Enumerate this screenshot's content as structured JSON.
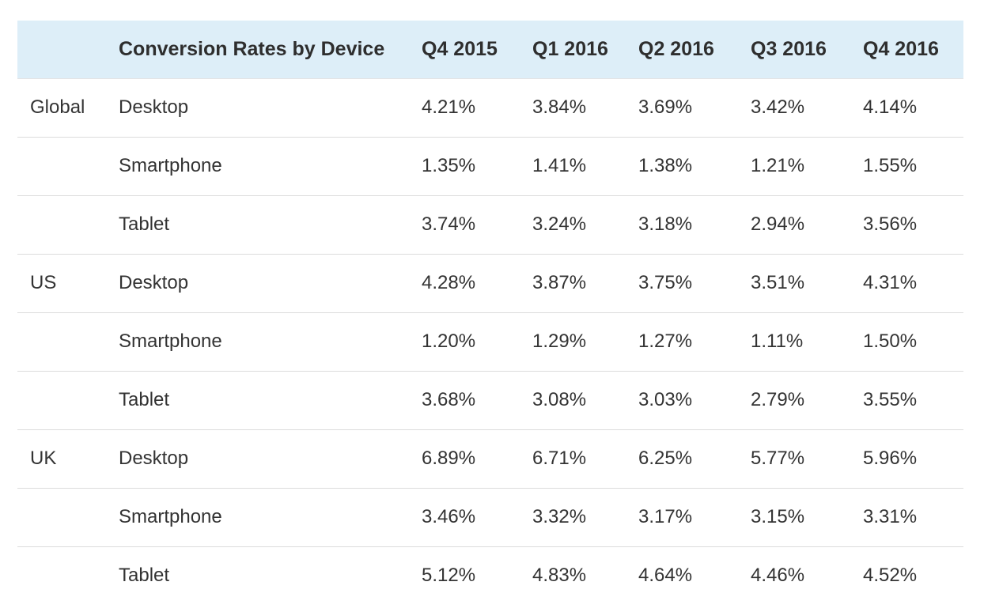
{
  "chart_data": {
    "type": "table",
    "title": "Conversion Rates by Device",
    "columns": [
      "",
      "Conversion Rates by Device",
      "Q4 2015",
      "Q1 2016",
      "Q2 2016",
      "Q3 2016",
      "Q4 2016"
    ],
    "rows": [
      {
        "region": "Global",
        "device": "Desktop",
        "values": [
          "4.21%",
          "3.84%",
          "3.69%",
          "3.42%",
          "4.14%"
        ]
      },
      {
        "region": "",
        "device": "Smartphone",
        "values": [
          "1.35%",
          "1.41%",
          "1.38%",
          "1.21%",
          "1.55%"
        ]
      },
      {
        "region": "",
        "device": "Tablet",
        "values": [
          "3.74%",
          "3.24%",
          "3.18%",
          "2.94%",
          "3.56%"
        ]
      },
      {
        "region": "US",
        "device": "Desktop",
        "values": [
          "4.28%",
          "3.87%",
          "3.75%",
          "3.51%",
          "4.31%"
        ]
      },
      {
        "region": "",
        "device": "Smartphone",
        "values": [
          "1.20%",
          "1.29%",
          "1.27%",
          "1.11%",
          "1.50%"
        ]
      },
      {
        "region": "",
        "device": "Tablet",
        "values": [
          "3.68%",
          "3.08%",
          "3.03%",
          "2.79%",
          "3.55%"
        ]
      },
      {
        "region": "UK",
        "device": "Desktop",
        "values": [
          "6.89%",
          "6.71%",
          "6.25%",
          "5.77%",
          "5.96%"
        ]
      },
      {
        "region": "",
        "device": "Smartphone",
        "values": [
          "3.46%",
          "3.32%",
          "3.17%",
          "3.15%",
          "3.31%"
        ]
      },
      {
        "region": "",
        "device": "Tablet",
        "values": [
          "5.12%",
          "4.83%",
          "4.64%",
          "4.46%",
          "4.52%"
        ]
      }
    ]
  },
  "colors": {
    "header_background": "#ddeef8",
    "row_divider": "#dcdcdc",
    "text": "#333333"
  }
}
